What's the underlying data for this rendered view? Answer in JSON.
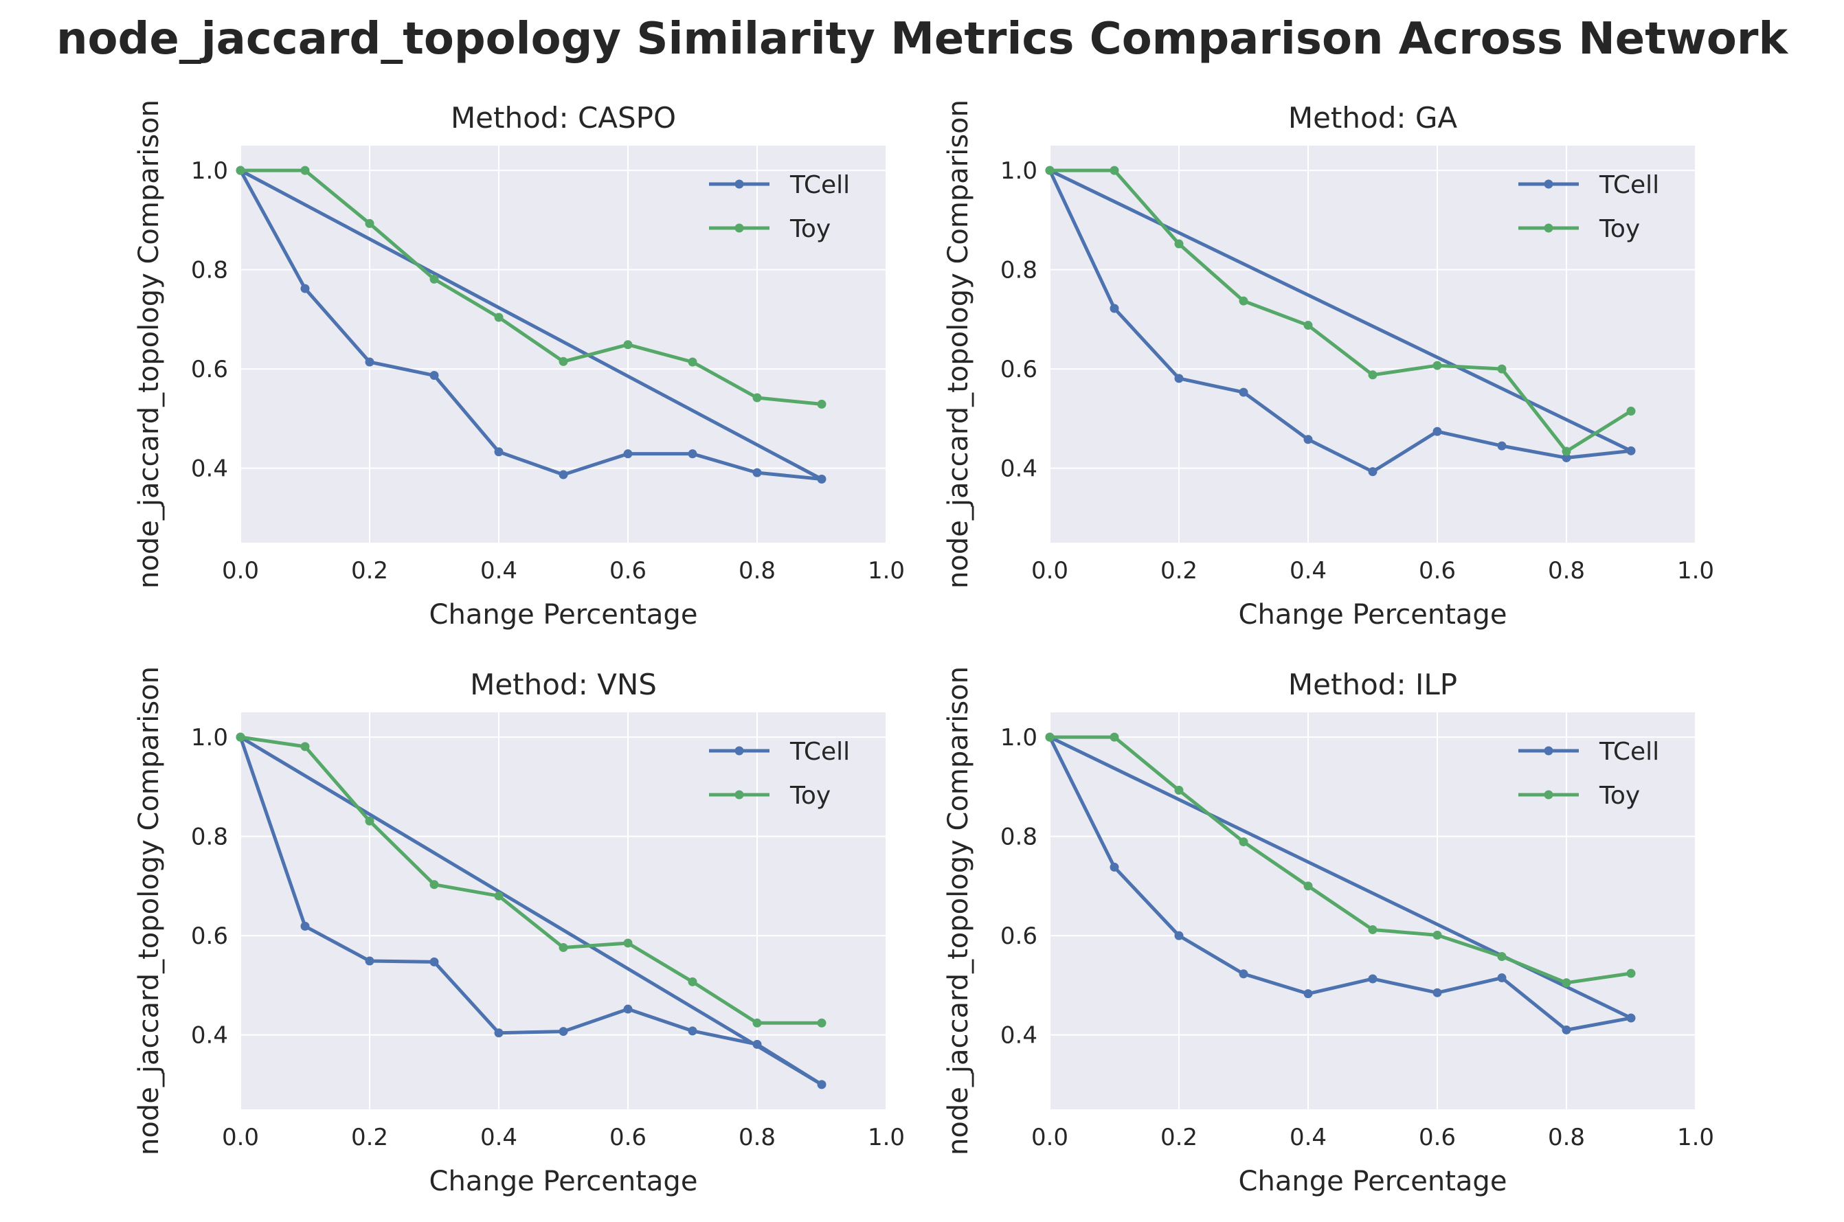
{
  "suptitle": "node_jaccard_topology Similarity Metrics Comparison Across Network",
  "colors": {
    "TCell": "#4c72b0",
    "Toy": "#55a868",
    "panel_bg": "#eaeaf2"
  },
  "chart_data": [
    {
      "type": "line",
      "title": "Method: CASPO",
      "xlabel": "Change Percentage",
      "ylabel": "node_jaccard_topology Comparison",
      "xlim": [
        0.0,
        1.0
      ],
      "ylim": [
        0.25,
        1.05
      ],
      "xticks": [
        "0.0",
        "0.2",
        "0.4",
        "0.6",
        "0.8",
        "1.0"
      ],
      "yticks": [
        "0.4",
        "0.6",
        "0.8",
        "1.0"
      ],
      "grid": true,
      "legend": "top-right",
      "x": [
        0.0,
        0.1,
        0.2,
        0.3,
        0.4,
        0.5,
        0.6,
        0.7,
        0.8,
        0.9,
        0.0
      ],
      "series": [
        {
          "name": "TCell",
          "x": [
            0.0,
            0.1,
            0.2,
            0.3,
            0.4,
            0.5,
            0.6,
            0.7,
            0.8,
            0.9,
            0.0
          ],
          "values": [
            1.0,
            0.762,
            0.614,
            0.587,
            0.433,
            0.387,
            0.429,
            0.429,
            0.391,
            0.378,
            1.0
          ],
          "closed_to": 0.378
        },
        {
          "name": "Toy",
          "x": [
            0.0,
            0.1,
            0.2,
            0.3,
            0.4,
            0.5,
            0.6,
            0.7,
            0.8,
            0.9
          ],
          "values": [
            1.0,
            1.0,
            0.893,
            0.781,
            0.704,
            0.615,
            0.649,
            0.614,
            0.542,
            0.529
          ]
        }
      ]
    },
    {
      "type": "line",
      "title": "Method: GA",
      "xlabel": "Change Percentage",
      "ylabel": "node_jaccard_topology Comparison",
      "xlim": [
        0.0,
        1.0
      ],
      "ylim": [
        0.25,
        1.05
      ],
      "xticks": [
        "0.0",
        "0.2",
        "0.4",
        "0.6",
        "0.8",
        "1.0"
      ],
      "yticks": [
        "0.4",
        "0.6",
        "0.8",
        "1.0"
      ],
      "grid": true,
      "legend": "top-right",
      "series": [
        {
          "name": "TCell",
          "x": [
            0.0,
            0.1,
            0.2,
            0.3,
            0.4,
            0.5,
            0.6,
            0.7,
            0.8,
            0.9,
            0.0
          ],
          "values": [
            1.0,
            0.722,
            0.581,
            0.553,
            0.458,
            0.393,
            0.474,
            0.445,
            0.421,
            0.435,
            1.0
          ]
        },
        {
          "name": "Toy",
          "x": [
            0.0,
            0.1,
            0.2,
            0.3,
            0.4,
            0.5,
            0.6,
            0.7,
            0.8,
            0.9
          ],
          "values": [
            1.0,
            1.0,
            0.852,
            0.737,
            0.688,
            0.588,
            0.607,
            0.6,
            0.434,
            0.515
          ]
        }
      ]
    },
    {
      "type": "line",
      "title": "Method: VNS",
      "xlabel": "Change Percentage",
      "ylabel": "node_jaccard_topology Comparison",
      "xlim": [
        0.0,
        1.0
      ],
      "ylim": [
        0.25,
        1.05
      ],
      "xticks": [
        "0.0",
        "0.2",
        "0.4",
        "0.6",
        "0.8",
        "1.0"
      ],
      "yticks": [
        "0.4",
        "0.6",
        "0.8",
        "1.0"
      ],
      "grid": true,
      "legend": "top-right",
      "series": [
        {
          "name": "TCell",
          "x": [
            0.0,
            0.1,
            0.2,
            0.3,
            0.4,
            0.5,
            0.6,
            0.7,
            0.8,
            0.9,
            0.0
          ],
          "values": [
            1.0,
            0.619,
            0.549,
            0.547,
            0.404,
            0.407,
            0.452,
            0.408,
            0.381,
            0.3,
            1.0
          ]
        },
        {
          "name": "Toy",
          "x": [
            0.0,
            0.1,
            0.2,
            0.3,
            0.4,
            0.5,
            0.6,
            0.7,
            0.8,
            0.9
          ],
          "values": [
            1.0,
            0.981,
            0.831,
            0.703,
            0.68,
            0.576,
            0.585,
            0.507,
            0.424,
            0.424
          ]
        }
      ]
    },
    {
      "type": "line",
      "title": "Method: ILP",
      "xlabel": "Change Percentage",
      "ylabel": "node_jaccard_topology Comparison",
      "xlim": [
        0.0,
        1.0
      ],
      "ylim": [
        0.25,
        1.05
      ],
      "xticks": [
        "0.0",
        "0.2",
        "0.4",
        "0.6",
        "0.8",
        "1.0"
      ],
      "yticks": [
        "0.4",
        "0.6",
        "0.8",
        "1.0"
      ],
      "grid": true,
      "legend": "top-right",
      "series": [
        {
          "name": "TCell",
          "x": [
            0.0,
            0.1,
            0.2,
            0.3,
            0.4,
            0.5,
            0.6,
            0.7,
            0.8,
            0.9,
            0.0
          ],
          "values": [
            1.0,
            0.738,
            0.6,
            0.523,
            0.483,
            0.513,
            0.485,
            0.515,
            0.41,
            0.434,
            1.0
          ]
        },
        {
          "name": "Toy",
          "x": [
            0.0,
            0.1,
            0.2,
            0.3,
            0.4,
            0.5,
            0.6,
            0.7,
            0.8,
            0.9
          ],
          "values": [
            1.0,
            1.0,
            0.893,
            0.789,
            0.7,
            0.612,
            0.601,
            0.558,
            0.505,
            0.524
          ]
        }
      ]
    }
  ]
}
